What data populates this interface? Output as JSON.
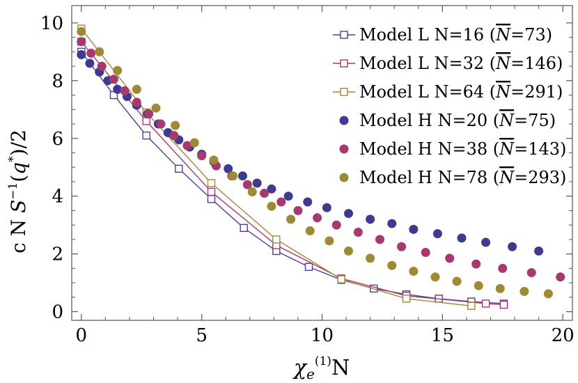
{
  "chart_data": {
    "type": "scatter",
    "title": "",
    "xlabel": "χ_e^(1) N",
    "ylabel": "c N S^-1(q*)/2",
    "xlim": [
      -0.4,
      20.4
    ],
    "ylim": [
      -0.3,
      10.6
    ],
    "xticks": [
      0,
      5,
      10,
      15,
      20
    ],
    "yticks": [
      0,
      2,
      4,
      6,
      8,
      10
    ],
    "legend_position": "top-right",
    "series": [
      {
        "name": "Model L  N=16 (N̄=73)",
        "legend": {
          "model": "Model L",
          "n": "N=16",
          "nbar_label": "N",
          "nbar_value": "=73"
        },
        "style": "line-open-square",
        "color": "#4a3f9c",
        "x": [
          0,
          1.35,
          2.7,
          4.05,
          5.4,
          6.75,
          8.1,
          9.45,
          10.8,
          12.15,
          13.5,
          14.85,
          16.2,
          17.55
        ],
        "y": [
          9.0,
          7.5,
          6.1,
          4.95,
          3.9,
          2.9,
          2.1,
          1.55,
          1.1,
          0.8,
          0.6,
          0.45,
          0.35,
          0.28
        ]
      },
      {
        "name": "Model L  N=32 (N̄=146)",
        "legend": {
          "model": "Model L",
          "n": "N=32",
          "nbar_label": "N",
          "nbar_value": "=146"
        },
        "style": "line-open-square",
        "color": "#a8386e",
        "x": [
          0,
          2.7,
          5.4,
          8.1,
          10.8,
          13.5,
          16.8,
          17.55
        ],
        "y": [
          9.35,
          6.6,
          4.15,
          2.3,
          1.15,
          0.55,
          0.28,
          0.24
        ]
      },
      {
        "name": "Model L  N=64 (N̄=291)",
        "legend": {
          "model": "Model L",
          "n": "N=64",
          "nbar_label": "N",
          "nbar_value": "=291"
        },
        "style": "line-open-square",
        "color": "#9c8a35",
        "x": [
          0,
          2.7,
          5.4,
          8.1,
          10.8,
          13.5,
          16.2
        ],
        "y": [
          9.8,
          6.9,
          4.45,
          2.5,
          1.12,
          0.45,
          0.2
        ]
      },
      {
        "name": "Model H  N=20 (N̄=75)",
        "legend": {
          "model": "Model H",
          "n": "N=20",
          "nbar_label": "N",
          "nbar_value": "=75"
        },
        "style": "filled-circle",
        "color": "#3d3a92",
        "x": [
          0,
          0.35,
          0.75,
          1.1,
          1.5,
          1.9,
          2.3,
          2.75,
          3.2,
          3.6,
          4.05,
          4.5,
          5.0,
          5.5,
          6.1,
          6.7,
          7.3,
          7.9,
          8.6,
          9.4,
          10.2,
          11.1,
          12.0,
          12.9,
          13.8,
          14.8,
          15.8,
          16.8,
          17.9,
          19.0
        ],
        "y": [
          8.9,
          8.6,
          8.3,
          8.0,
          7.7,
          7.45,
          7.15,
          6.85,
          6.5,
          6.2,
          5.95,
          5.7,
          5.45,
          5.2,
          4.95,
          4.7,
          4.45,
          4.25,
          4.0,
          3.8,
          3.6,
          3.4,
          3.2,
          3.05,
          2.85,
          2.7,
          2.55,
          2.4,
          2.25,
          2.1
        ]
      },
      {
        "name": "Model H  N=38 (N̄=143)",
        "legend": {
          "model": "Model H",
          "n": "N=38",
          "nbar_label": "N",
          "nbar_value": "=143"
        },
        "style": "filled-circle",
        "color": "#a8386e",
        "x": [
          0,
          0.4,
          0.85,
          1.35,
          1.8,
          2.3,
          2.8,
          3.3,
          3.85,
          4.4,
          5.0,
          5.6,
          6.25,
          6.9,
          7.6,
          8.3,
          9.0,
          9.8,
          10.6,
          11.5,
          12.4,
          13.3,
          14.3,
          15.3,
          16.4,
          17.5,
          18.7,
          19.9
        ],
        "y": [
          9.35,
          8.95,
          8.5,
          8.05,
          7.65,
          7.25,
          6.85,
          6.5,
          6.1,
          5.75,
          5.4,
          5.05,
          4.7,
          4.4,
          4.1,
          3.8,
          3.5,
          3.25,
          3.0,
          2.75,
          2.5,
          2.25,
          2.05,
          1.85,
          1.65,
          1.5,
          1.35,
          1.2
        ]
      },
      {
        "name": "Model H  N=78 (N̄=293)",
        "legend": {
          "model": "Model H",
          "n": "N=78",
          "nbar_label": "N",
          "nbar_value": "=293"
        },
        "style": "filled-circle",
        "color": "#9c8a35",
        "x": [
          0,
          0.75,
          1.5,
          2.3,
          3.1,
          3.9,
          4.7,
          5.5,
          6.3,
          7.1,
          7.9,
          8.7,
          9.5,
          10.3,
          11.1,
          12.0,
          12.9,
          13.8,
          14.7,
          15.6,
          16.5,
          17.4,
          18.4,
          19.4
        ],
        "y": [
          9.7,
          9.0,
          8.35,
          7.7,
          7.05,
          6.45,
          5.85,
          5.25,
          4.7,
          4.15,
          3.65,
          3.2,
          2.8,
          2.45,
          2.1,
          1.85,
          1.6,
          1.4,
          1.2,
          1.05,
          0.9,
          0.8,
          0.7,
          0.62
        ]
      }
    ]
  }
}
